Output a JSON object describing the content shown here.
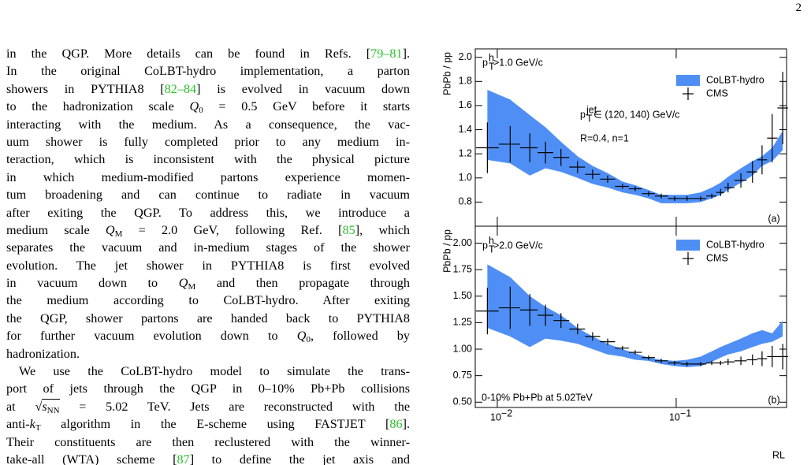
{
  "page_number": "2",
  "text": {
    "lines": [
      [
        {
          "t": "in the QGP. More details can be found in Refs. ["
        },
        {
          "ref": "79–81"
        },
        {
          "t": "]."
        }
      ],
      [
        {
          "t": "In the original CoLBT-hydro implementation, a parton"
        }
      ],
      [
        {
          "t": "showers in PYTHIA8 ["
        },
        {
          "ref": "82–84"
        },
        {
          "t": "] is evolved in vacuum down"
        }
      ],
      [
        {
          "t": "to the hadronization scale "
        },
        {
          "i": "Q",
          "sub": "0"
        },
        {
          "t": " = 0.5 GeV before it starts"
        }
      ],
      [
        {
          "t": "interacting with the medium. As a consequence, the vac-"
        }
      ],
      [
        {
          "t": "uum shower is fully completed prior to any medium in-"
        }
      ],
      [
        {
          "t": "teraction, which is inconsistent with the physical picture"
        }
      ],
      [
        {
          "t": "in which medium-modified partons experience momen-"
        }
      ],
      [
        {
          "t": "tum broadening and can continue to radiate in vacuum"
        }
      ],
      [
        {
          "t": "after exiting the QGP. To address this, we introduce a"
        }
      ],
      [
        {
          "t": "medium scale "
        },
        {
          "i": "Q",
          "sub": "M"
        },
        {
          "t": " = 2.0 GeV, following Ref. ["
        },
        {
          "ref": "85"
        },
        {
          "t": "], which"
        }
      ],
      [
        {
          "t": "separates the vacuum and in-medium stages of the shower"
        }
      ],
      [
        {
          "t": "evolution. The jet shower in PYTHIA8 is first evolved"
        }
      ],
      [
        {
          "t": "in vacuum down to "
        },
        {
          "i": "Q",
          "sub": "M"
        },
        {
          "t": " and then propagate through"
        }
      ],
      [
        {
          "t": "the medium according to CoLBT-hydro. After exiting"
        }
      ],
      [
        {
          "t": "the QGP, shower partons are handed back to PYTHIA8"
        }
      ],
      [
        {
          "t": "for further vacuum evolution down to "
        },
        {
          "i": "Q",
          "sub": "0"
        },
        {
          "t": ", followed by"
        }
      ],
      [
        {
          "t": "hadronization."
        }
      ],
      [
        {
          "t": "We use the CoLBT-hydro model to simulate the trans-"
        }
      ],
      [
        {
          "t": "port of jets through the QGP in 0–10% Pb+Pb collisions"
        }
      ],
      [
        {
          "t": "at "
        },
        {
          "sqrt": "s",
          "sub": "NN"
        },
        {
          "t": " = 5.02 TeV. Jets are reconstructed with the"
        }
      ],
      [
        {
          "t": "anti-"
        },
        {
          "i": "k",
          "sub": "T"
        },
        {
          "t": " algorithm in the E-scheme using FASTJET ["
        },
        {
          "ref": "86"
        },
        {
          "t": "]."
        }
      ],
      [
        {
          "t": "Their constituents are then reclustered with the winner-"
        }
      ],
      [
        {
          "t": "take-all (WTA) scheme ["
        },
        {
          "ref": "87"
        },
        {
          "t": "] to define the jet axis and"
        }
      ]
    ]
  },
  "chart_data": [
    {
      "type": "errorbar",
      "y_label": "PbPb / pp",
      "xscale": "log",
      "legend": "top-right",
      "xlim": [
        0.00753,
        0.414
      ],
      "ylim": [
        0.6,
        2.07
      ],
      "yticks": [
        0.8,
        {
          "value": 1,
          "label": "1.0"
        },
        1.2,
        1.4,
        1.6,
        1.8,
        {
          "value": 2,
          "label": "2.0"
        }
      ],
      "annotations": [
        {
          "base": "p",
          "sup": "h",
          "sub": "T",
          "text": ">1.0 GeV/c"
        },
        {
          "base": "p",
          "sup": "jet",
          "sub": "T",
          "text": "∈ (120, 140) GeV/c"
        },
        {
          "text": "R=0.4, n=1"
        },
        {
          "text": "(a)"
        }
      ],
      "x": [
        0.0088,
        0.0118,
        0.0152,
        0.0186,
        0.0227,
        0.0281,
        0.0341,
        0.0414,
        0.0501,
        0.059,
        0.0701,
        0.0825,
        0.098,
        0.115,
        0.137,
        0.158,
        0.177,
        0.195,
        0.23,
        0.267,
        0.302,
        0.344,
        0.394
      ],
      "series": [
        {
          "name": "CoLBT-hydro",
          "color": "#4f8ff5",
          "low": [
            1.15,
            1.12,
            1.02,
            1.08,
            1.05,
            1.0,
            0.95,
            0.92,
            0.88,
            0.86,
            0.83,
            0.79,
            0.79,
            0.79,
            0.8,
            0.83,
            0.86,
            0.9,
            0.96,
            1.02,
            1.1,
            1.14,
            1.23
          ],
          "high": [
            1.73,
            1.65,
            1.52,
            1.42,
            1.3,
            1.18,
            1.1,
            1.04,
            0.97,
            0.94,
            0.9,
            0.86,
            0.86,
            0.86,
            0.88,
            0.92,
            0.96,
            1.01,
            1.08,
            1.14,
            1.18,
            1.25,
            1.39
          ]
        },
        {
          "name": "CMS",
          "color": "#000000",
          "values": [
            1.25,
            1.28,
            1.25,
            1.21,
            1.17,
            1.09,
            1.03,
            0.99,
            0.93,
            0.91,
            0.87,
            0.85,
            0.83,
            0.83,
            0.83,
            0.85,
            0.88,
            0.92,
            0.98,
            1.05,
            1.15,
            1.33,
            1.58
          ],
          "errors": [
            0.21,
            0.15,
            0.12,
            0.09,
            0.07,
            0.05,
            0.04,
            0.03,
            0.02,
            0.02,
            0.02,
            0.02,
            0.02,
            0.02,
            0.02,
            0.02,
            0.03,
            0.04,
            0.06,
            0.09,
            0.12,
            0.2,
            0.3
          ]
        }
      ]
    },
    {
      "type": "errorbar",
      "y_label": "PbPb / pp",
      "x_label": "RL",
      "xscale": "log",
      "legend": "top-right",
      "xlim": [
        0.00753,
        0.414
      ],
      "ylim": [
        0.45,
        2.16
      ],
      "xticks": [
        {
          "value": 0.01,
          "label": "10",
          "exponent": "−2"
        },
        {
          "value": 0.1,
          "label": "10",
          "exponent": "−1"
        }
      ],
      "yticks": [
        {
          "value": 0.5,
          "label": "0.50"
        },
        {
          "value": 0.75,
          "label": "0.75"
        },
        {
          "value": 1,
          "label": "1.00"
        },
        {
          "value": 1.25,
          "label": "1.25"
        },
        {
          "value": 1.5,
          "label": "1.50"
        },
        {
          "value": 1.75,
          "label": "1.75"
        },
        {
          "value": 2,
          "label": "2.00"
        }
      ],
      "annotations": [
        {
          "base": "p",
          "sup": "h",
          "sub": "T",
          "text": ">2.0 GeV/c"
        },
        {
          "text": "0-10% Pb+Pb at 5.02TeV"
        },
        {
          "text": "(b)"
        }
      ],
      "x": [
        0.0088,
        0.0118,
        0.0152,
        0.0186,
        0.0227,
        0.0281,
        0.0341,
        0.0414,
        0.0501,
        0.059,
        0.0701,
        0.0825,
        0.098,
        0.115,
        0.137,
        0.158,
        0.177,
        0.195,
        0.23,
        0.267,
        0.302,
        0.344,
        0.394
      ],
      "series": [
        {
          "name": "CoLBT-hydro",
          "color": "#4f8ff5",
          "low": [
            1.2,
            1.12,
            1.02,
            1.1,
            1.08,
            1.05,
            1.0,
            0.95,
            0.93,
            0.9,
            0.89,
            0.86,
            0.84,
            0.83,
            0.84,
            0.88,
            0.92,
            0.95,
            0.98,
            1.02,
            1.05,
            1.07,
            1.12
          ],
          "high": [
            1.8,
            1.68,
            1.5,
            1.4,
            1.32,
            1.2,
            1.12,
            1.05,
            1.0,
            0.96,
            0.92,
            0.9,
            0.89,
            0.9,
            0.93,
            0.98,
            1.02,
            1.05,
            1.1,
            1.15,
            1.18,
            1.15,
            1.27
          ]
        },
        {
          "name": "CMS",
          "color": "#000000",
          "values": [
            1.36,
            1.39,
            1.37,
            1.32,
            1.27,
            1.19,
            1.12,
            1.07,
            1.01,
            0.97,
            0.92,
            0.89,
            0.87,
            0.86,
            0.86,
            0.87,
            0.87,
            0.88,
            0.89,
            0.9,
            0.91,
            0.93,
            0.93
          ],
          "errors": [
            0.22,
            0.2,
            0.15,
            0.1,
            0.07,
            0.05,
            0.04,
            0.03,
            0.02,
            0.02,
            0.02,
            0.02,
            0.02,
            0.02,
            0.02,
            0.02,
            0.02,
            0.03,
            0.04,
            0.05,
            0.07,
            0.1,
            0.12
          ]
        }
      ]
    }
  ]
}
